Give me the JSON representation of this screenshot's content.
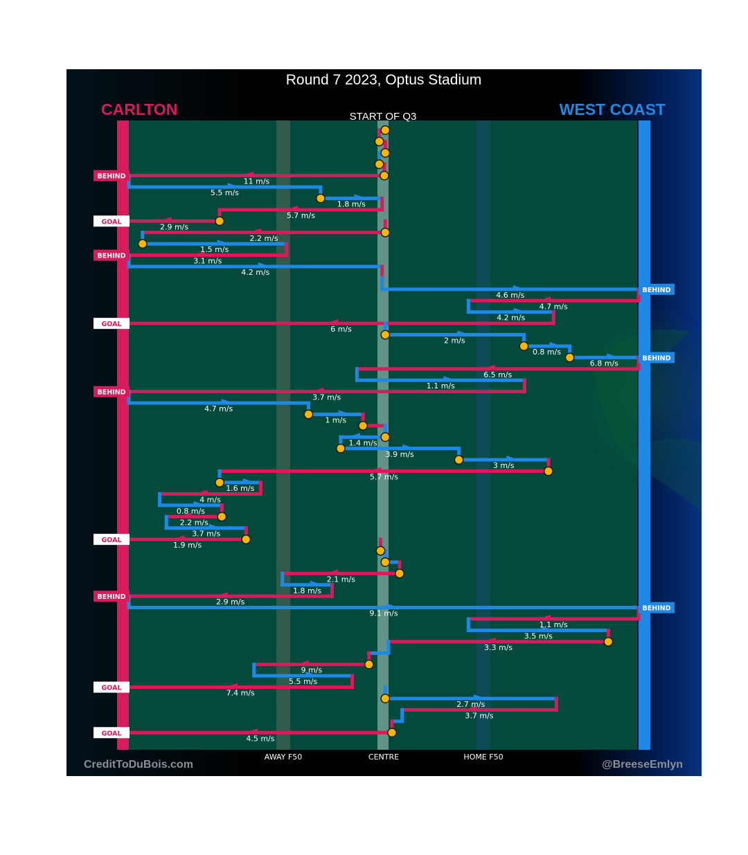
{
  "chart_data": {
    "type": "line",
    "title": "Round 7 2023, Optus Stadium",
    "subtitle": "START OF Q3",
    "teams": {
      "left": "CARLTON",
      "right": "WEST COAST"
    },
    "colors": {
      "carlton": "#d81b5a",
      "westcoast": "#1e88e5",
      "field": "#03493c",
      "marker": "#f5b800"
    },
    "x_axis": {
      "range_m": [
        0,
        160
      ],
      "labels": [
        "AWAY F50",
        "CENTRE",
        "HOME F50"
      ],
      "label_positions_m": [
        50,
        80,
        110
      ]
    },
    "credits": {
      "left": "CreditToDuBois.com",
      "right": "@BreeseEmlyn"
    },
    "possessions": [
      {
        "team": "carlton",
        "xs": [
          80.5,
          78.6
        ],
        "speed": "",
        "seq": 1,
        "start_marker": true
      },
      {
        "team": "carlton",
        "xs": [
          78.6,
          80.5
        ],
        "speed": "",
        "seq": 2,
        "start_marker": true
      },
      {
        "team": "carlton",
        "xs": [
          80.5,
          78.6
        ],
        "speed": "",
        "seq": 3,
        "start_marker": true
      },
      {
        "team": "westcoast",
        "xs": [
          78.6,
          80.2
        ],
        "speed": "",
        "seq": 4,
        "start_marker": true
      },
      {
        "team": "carlton",
        "xs": [
          80.2,
          0
        ],
        "speed": "11 m/s",
        "seq": 5,
        "start_marker": true,
        "outcome": "BEHIND"
      },
      {
        "team": "westcoast",
        "xs": [
          0,
          60.2
        ],
        "speed": "5.5 m/s",
        "seq": 6
      },
      {
        "team": "westcoast",
        "xs": [
          60.2,
          79.5
        ],
        "speed": "1.8 m/s",
        "seq": 7,
        "start_marker": true
      },
      {
        "team": "carlton",
        "xs": [
          79.5,
          28.5
        ],
        "speed": "5.7 m/s",
        "seq": 8
      },
      {
        "team": "carlton",
        "xs": [
          28.5,
          0
        ],
        "speed": "2.9 m/s",
        "seq": 9,
        "start_marker": true,
        "outcome": "GOAL"
      },
      {
        "team": "carlton",
        "xs": [
          80.5,
          4.3
        ],
        "speed": "2.2 m/s",
        "seq": 10,
        "start_marker": true
      },
      {
        "team": "westcoast",
        "xs": [
          4.3,
          49.5
        ],
        "speed": "1.5 m/s",
        "seq": 11,
        "start_marker": true
      },
      {
        "team": "carlton",
        "xs": [
          49.5,
          0
        ],
        "speed": "3.1 m/s",
        "seq": 12,
        "outcome": "BEHIND"
      },
      {
        "team": "westcoast",
        "xs": [
          0,
          79.5
        ],
        "speed": "4.2 m/s",
        "seq": 13
      },
      {
        "team": "carlton",
        "xs": [
          79.5,
          79.5
        ],
        "speed": "",
        "seq": 14
      },
      {
        "team": "westcoast",
        "xs": [
          79.5,
          160
        ],
        "speed": "4.6 m/s",
        "seq": 15,
        "outcome": "BEHIND"
      },
      {
        "team": "carlton",
        "xs": [
          160,
          106.6
        ],
        "speed": "4.7 m/s",
        "seq": 16
      },
      {
        "team": "westcoast",
        "xs": [
          106.6,
          133.3
        ],
        "speed": "4.2 m/s",
        "seq": 17
      },
      {
        "team": "carlton",
        "xs": [
          133.3,
          0
        ],
        "speed": "6 m/s",
        "seq": 18,
        "outcome": "GOAL"
      },
      {
        "team": "westcoast",
        "xs": [
          80.5,
          124
        ],
        "speed": "2 m/s",
        "seq": 19,
        "start_marker": true
      },
      {
        "team": "westcoast",
        "xs": [
          124,
          138.4
        ],
        "speed": "0.8 m/s",
        "seq": 20,
        "start_marker": true
      },
      {
        "team": "westcoast",
        "xs": [
          138.4,
          160
        ],
        "speed": "6.8 m/s",
        "seq": 21,
        "start_marker": true,
        "outcome": "BEHIND"
      },
      {
        "team": "carlton",
        "xs": [
          160,
          71.6
        ],
        "speed": "6.5 m/s",
        "seq": 22
      },
      {
        "team": "westcoast",
        "xs": [
          71.6,
          124.2
        ],
        "speed": "1.1 m/s",
        "seq": 23
      },
      {
        "team": "carlton",
        "xs": [
          124.2,
          0
        ],
        "speed": "3.7 m/s",
        "seq": 24,
        "outcome": "BEHIND"
      },
      {
        "team": "westcoast",
        "xs": [
          0,
          56.4
        ],
        "speed": "4.7 m/s",
        "seq": 25
      },
      {
        "team": "westcoast",
        "xs": [
          56.4,
          73.5
        ],
        "speed": "1 m/s",
        "seq": 26,
        "start_marker": true
      },
      {
        "team": "carlton",
        "xs": [
          73.5,
          80.5
        ],
        "speed": "",
        "seq": 27,
        "start_marker": true
      },
      {
        "team": "westcoast",
        "xs": [
          80.5,
          66.5
        ],
        "speed": "1.4 m/s",
        "seq": 28,
        "start_marker": true
      },
      {
        "team": "westcoast",
        "xs": [
          66.5,
          103.6
        ],
        "speed": "3.9 m/s",
        "seq": 29,
        "start_marker": true
      },
      {
        "team": "westcoast",
        "xs": [
          103.6,
          131.7
        ],
        "speed": "3 m/s",
        "seq": 30,
        "start_marker": true
      },
      {
        "team": "carlton",
        "xs": [
          131.7,
          28.5
        ],
        "speed": "5.7 m/s",
        "seq": 31,
        "start_marker": true
      },
      {
        "team": "westcoast",
        "xs": [
          28.5,
          41.4
        ],
        "speed": "1.6 m/s",
        "seq": 32,
        "start_marker": true
      },
      {
        "team": "carlton",
        "xs": [
          41.4,
          9.7
        ],
        "speed": "4 m/s",
        "seq": 33
      },
      {
        "team": "westcoast",
        "xs": [
          9.7,
          29.2
        ],
        "speed": "0.8 m/s",
        "seq": 34
      },
      {
        "team": "carlton",
        "xs": [
          29.2,
          11.8
        ],
        "speed": "2.2 m/s",
        "seq": 35,
        "start_marker": true
      },
      {
        "team": "westcoast",
        "xs": [
          11.8,
          36.8
        ],
        "speed": "3.7 m/s",
        "seq": 36
      },
      {
        "team": "carlton",
        "xs": [
          36.8,
          0
        ],
        "speed": "1.9 m/s",
        "seq": 37,
        "start_marker": true,
        "outcome": "GOAL"
      },
      {
        "team": "carlton",
        "xs": [
          79.0,
          80.5
        ],
        "speed": "",
        "seq": 38,
        "start_marker": true
      },
      {
        "team": "westcoast",
        "xs": [
          80.5,
          85.0
        ],
        "speed": "",
        "seq": 39,
        "start_marker": true
      },
      {
        "team": "carlton",
        "xs": [
          85.0,
          48.2
        ],
        "speed": "2.1 m/s",
        "seq": 40,
        "start_marker": true
      },
      {
        "team": "westcoast",
        "xs": [
          48.2,
          63.8
        ],
        "speed": "1.8 m/s",
        "seq": 41
      },
      {
        "team": "carlton",
        "xs": [
          63.8,
          0
        ],
        "speed": "2.9 m/s",
        "seq": 42,
        "outcome": "BEHIND"
      },
      {
        "team": "westcoast",
        "xs": [
          0,
          160
        ],
        "speed": "9.1 m/s",
        "seq": 43,
        "outcome": "BEHIND"
      },
      {
        "team": "carlton",
        "xs": [
          160,
          106.6
        ],
        "speed": "1.1 m/s",
        "seq": 44
      },
      {
        "team": "westcoast",
        "xs": [
          106.6,
          150.5
        ],
        "speed": "3.5 m/s",
        "seq": 45
      },
      {
        "team": "carlton",
        "xs": [
          150.5,
          81.5
        ],
        "speed": "3.3 m/s",
        "seq": 46,
        "start_marker": true
      },
      {
        "team": "westcoast",
        "xs": [
          81.5,
          75.4
        ],
        "speed": "",
        "seq": 47
      },
      {
        "team": "carlton",
        "xs": [
          75.4,
          39.3
        ],
        "speed": "9 m/s",
        "seq": 48,
        "start_marker": true
      },
      {
        "team": "westcoast",
        "xs": [
          39.3,
          70.1
        ],
        "speed": "5.5 m/s",
        "seq": 49
      },
      {
        "team": "carlton",
        "xs": [
          70.1,
          0
        ],
        "speed": "7.4 m/s",
        "seq": 50,
        "outcome": "GOAL"
      },
      {
        "team": "westcoast",
        "xs": [
          80.5,
          134.2
        ],
        "speed": "2.7 m/s",
        "seq": 51,
        "start_marker": true
      },
      {
        "team": "carlton",
        "xs": [
          134.2,
          85.8
        ],
        "speed": "3.7 m/s",
        "seq": 52
      },
      {
        "team": "westcoast",
        "xs": [
          85.8,
          82.6
        ],
        "speed": "",
        "seq": 53
      },
      {
        "team": "carlton",
        "xs": [
          82.6,
          0
        ],
        "speed": "4.5 m/s",
        "seq": 54,
        "start_marker": true,
        "outcome": "GOAL"
      }
    ]
  }
}
